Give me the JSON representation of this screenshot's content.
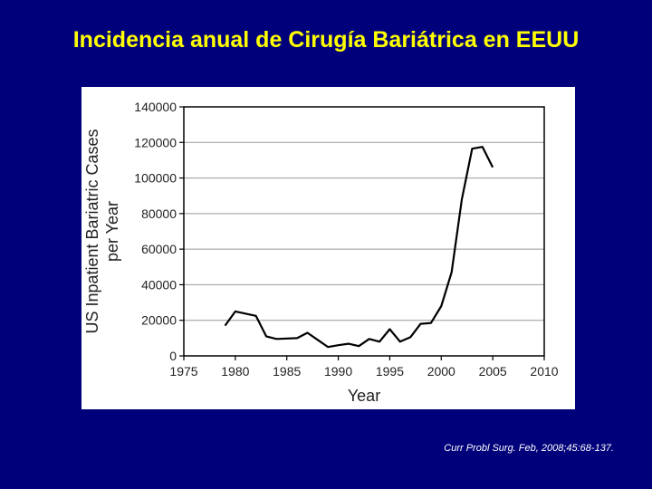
{
  "slide": {
    "title": "Incidencia anual de Cirugía Bariátrica en EEUU",
    "citation": "Curr Probl Surg. Feb, 2008;45:68-137."
  },
  "colors": {
    "background": "#00007a",
    "title": "#ffff00",
    "line": "#000000",
    "grid": "#999999"
  },
  "chart_data": {
    "type": "line",
    "title": "",
    "xlabel": "Year",
    "ylabel": [
      "US Inpatient Bariatric Cases",
      "per Year"
    ],
    "xlim": [
      1975,
      2010
    ],
    "ylim": [
      0,
      140000
    ],
    "grid": true,
    "x_ticks": [
      1975,
      1980,
      1985,
      1990,
      1995,
      2000,
      2005,
      2010
    ],
    "y_ticks": [
      0,
      20000,
      40000,
      60000,
      80000,
      100000,
      120000,
      140000
    ],
    "x": [
      1979,
      1980,
      1982,
      1983,
      1984,
      1986,
      1987,
      1988,
      1989,
      1990,
      1991,
      1992,
      1993,
      1994,
      1995,
      1996,
      1997,
      1998,
      1999,
      2000,
      2001,
      2002,
      2003,
      2004,
      2005
    ],
    "y": [
      17000,
      25000,
      22500,
      11000,
      9500,
      10000,
      13000,
      9000,
      5000,
      6000,
      6800,
      5500,
      9500,
      8000,
      15000,
      8000,
      10500,
      18000,
      18500,
      28000,
      47000,
      88000,
      116500,
      117500,
      106000
    ]
  }
}
